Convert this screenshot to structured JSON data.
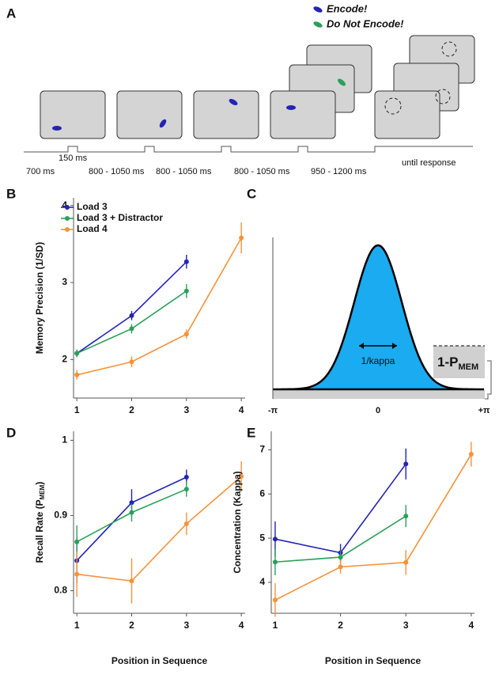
{
  "panel_a": {
    "label": "A",
    "legend": [
      "Encode!",
      "Do Not Encode!"
    ],
    "timings": [
      "150 ms",
      "700 ms",
      "800 - 1050 ms",
      "800 - 1050 ms",
      "800 - 1050 ms",
      "950 - 1200 ms",
      "until response"
    ]
  },
  "panel_c": {
    "label": "C",
    "xticks": [
      "-π",
      "0",
      "+π"
    ],
    "width_label": "1/kappa",
    "guess_label": "1-P",
    "guess_sub": "MEM"
  },
  "chart_data": [
    {
      "type": "line",
      "panel": "B",
      "ylabel": "Memory Precision (1/SD)",
      "x": [
        1,
        2,
        3,
        4
      ],
      "xlim": [
        0.94,
        4.07
      ],
      "xticks": [
        1,
        2,
        3,
        4
      ],
      "ylim": [
        1.5,
        4.1
      ],
      "yticks": [
        2,
        3,
        4
      ],
      "series": [
        {
          "name": "Load 3",
          "color": "#2323b8",
          "values": [
            2.08,
            2.57,
            3.27,
            null
          ],
          "errors": [
            0.04,
            0.06,
            0.09,
            null
          ]
        },
        {
          "name": "Load 3 + Distractor",
          "color": "#2aa05a",
          "values": [
            2.08,
            2.4,
            2.89,
            null
          ],
          "errors": [
            0.05,
            0.06,
            0.09,
            null
          ]
        },
        {
          "name": "Load 4",
          "color": "#f7923a",
          "values": [
            1.8,
            1.97,
            2.33,
            3.58
          ],
          "errors": [
            0.06,
            0.07,
            0.06,
            0.2
          ]
        }
      ]
    },
    {
      "type": "line",
      "panel": "D",
      "ylabel": "Recall Rate (P",
      "ylabel_sub": "MEM",
      "ylabel_end": ")",
      "xlabel": "Position in Sequence",
      "x": [
        1,
        2,
        3,
        4
      ],
      "xlim": [
        0.94,
        4.07
      ],
      "xticks": [
        1,
        2,
        3,
        4
      ],
      "ylim": [
        0.77,
        1.012
      ],
      "yticks": [
        0.8,
        0.9,
        1
      ],
      "series": [
        {
          "name": "Load 3",
          "color": "#2323b8",
          "values": [
            0.84,
            0.917,
            0.951,
            null
          ],
          "errors": [
            0.03,
            0.018,
            0.01,
            null
          ]
        },
        {
          "name": "Load 3 + Distractor",
          "color": "#2aa05a",
          "values": [
            0.865,
            0.904,
            0.935,
            null
          ],
          "errors": [
            0.022,
            0.012,
            0.01,
            null
          ]
        },
        {
          "name": "Load 4",
          "color": "#f7923a",
          "values": [
            0.822,
            0.813,
            0.889,
            0.952
          ],
          "errors": [
            0.03,
            0.03,
            0.015,
            0.02
          ]
        }
      ]
    },
    {
      "type": "line",
      "panel": "E",
      "ylabel": "Concentration (Kappa)",
      "xlabel": "Position in Sequence",
      "x": [
        1,
        2,
        3,
        4
      ],
      "xlim": [
        0.94,
        4.05
      ],
      "xticks": [
        1,
        2,
        3,
        4
      ],
      "ylim": [
        3.3,
        7.42
      ],
      "yticks": [
        4,
        5,
        6,
        7
      ],
      "series": [
        {
          "name": "Load 3",
          "color": "#2323b8",
          "values": [
            4.98,
            4.67,
            6.68,
            null
          ],
          "errors": [
            0.4,
            0.2,
            0.35,
            null
          ]
        },
        {
          "name": "Load 3 + Distractor",
          "color": "#2aa05a",
          "values": [
            4.46,
            4.57,
            5.5,
            null
          ],
          "errors": [
            0.3,
            0.15,
            0.25,
            null
          ]
        },
        {
          "name": "Load 4",
          "color": "#f7923a",
          "values": [
            3.6,
            4.35,
            4.45,
            6.9
          ],
          "errors": [
            0.38,
            0.15,
            0.28,
            0.28
          ]
        }
      ]
    }
  ]
}
